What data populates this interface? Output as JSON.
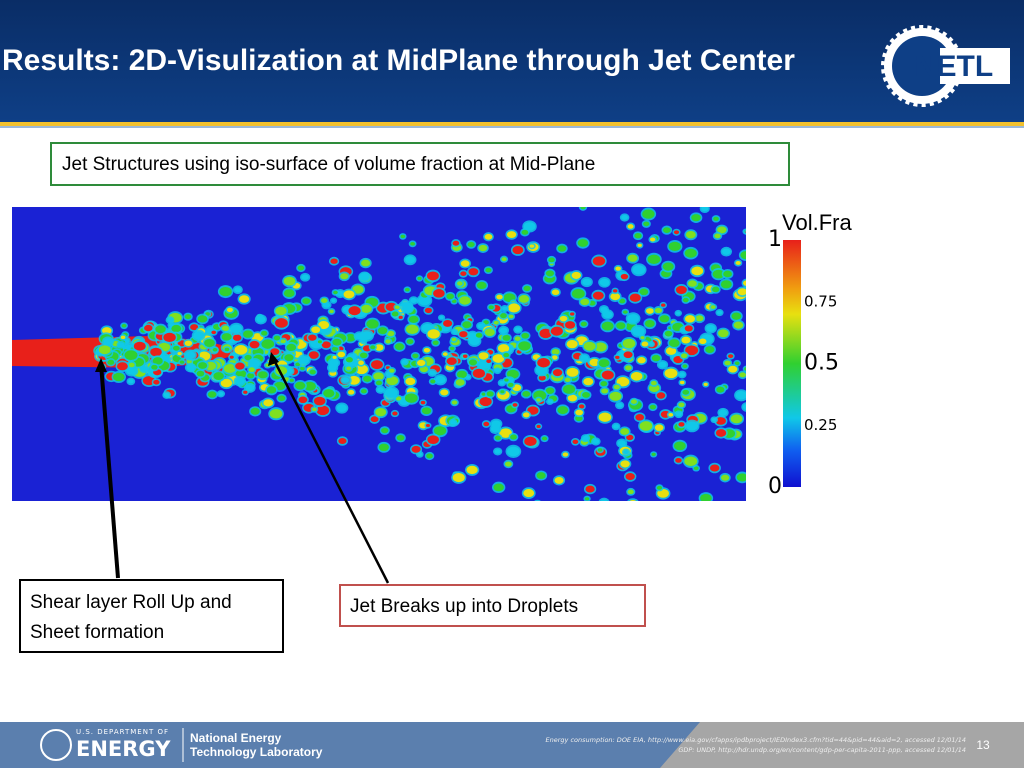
{
  "header": {
    "title": "Results:  2D-Visulization at MidPlane through Jet Center",
    "logo": "NETL"
  },
  "caption": "Jet Structures using iso-surface of volume fraction at Mid-Plane",
  "colorbar": {
    "title": "Vol.Fra",
    "ticks": [
      1,
      0.75,
      0.5,
      0.25,
      0
    ]
  },
  "callouts": [
    "Shear layer Roll Up and Sheet  formation",
    "Jet Breaks up into Droplets"
  ],
  "footer": {
    "doe_small": "U.S. DEPARTMENT OF",
    "doe_big": "ENERGY",
    "lab_line1": "National Energy",
    "lab_line2": "Technology Laboratory",
    "notes": [
      "Energy consumption: DOE EIA, http://www.eia.gov/cfapps/ipdbproject/IEDIndex3.cfm?tid=44&pid=44&aid=2, accessed 12/01/14",
      "GDP: UNDP, http://hdr.undp.org/en/content/gdp-per-capita-2011-ppp, accessed 12/01/14"
    ],
    "page": 13
  }
}
